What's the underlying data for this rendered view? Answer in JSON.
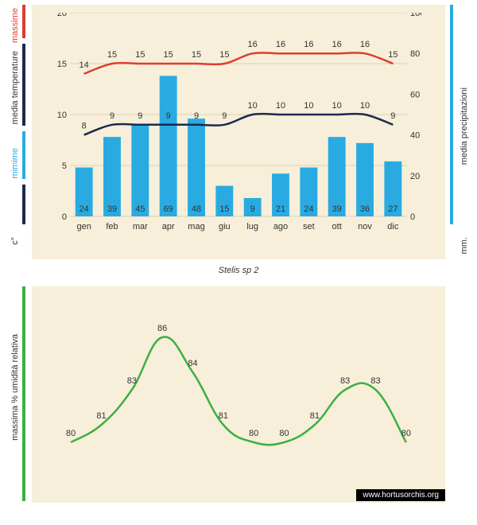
{
  "subtitle": "Stelis  sp 2",
  "watermark": "www.hortusorchis.org",
  "months": [
    "gen",
    "feb",
    "mar",
    "apr",
    "mag",
    "giu",
    "lug",
    "ago",
    "set",
    "ott",
    "nov",
    "dic"
  ],
  "top_chart": {
    "background": "#f7efd9",
    "grid_color": "#d9d0b8",
    "y_left": {
      "min": 0,
      "max": 20,
      "step": 5,
      "label_color": "#333"
    },
    "y_right": {
      "min": 0,
      "max": 100,
      "step": 20,
      "label_color": "#333"
    },
    "bars": {
      "color": "#29abe2",
      "values": [
        24,
        39,
        45,
        69,
        48,
        15,
        9,
        21,
        24,
        39,
        36,
        27
      ]
    },
    "line_max": {
      "color": "#e03c31",
      "values": [
        14,
        15,
        15,
        15,
        15,
        15,
        16,
        16,
        16,
        16,
        16,
        15
      ]
    },
    "line_min": {
      "color": "#1b2a4e",
      "values": [
        8,
        9,
        9,
        9,
        9,
        9,
        10,
        10,
        10,
        10,
        10,
        9
      ]
    }
  },
  "bottom_chart": {
    "background": "#f7efd9",
    "line": {
      "color": "#3cb043",
      "values": [
        80,
        81,
        83,
        86,
        84,
        81,
        80,
        80,
        81,
        83,
        83,
        80
      ]
    },
    "y": {
      "visible_min": 78,
      "visible_max": 88
    }
  },
  "left_labels": {
    "c_label": "c°",
    "minime": "mimime",
    "media_temp": "media  temperature",
    "massime": "massime",
    "massima_hum": "massima % umidità relativa"
  },
  "right_labels": {
    "mm_label": "mm.",
    "media_prec": "media  precipitazioni"
  },
  "colors": {
    "max_temp": "#e03c31",
    "min_temp": "#29abe2",
    "dark_navy": "#1b2a4e",
    "precip_bar": "#29abe2",
    "humidity": "#3cb043"
  }
}
